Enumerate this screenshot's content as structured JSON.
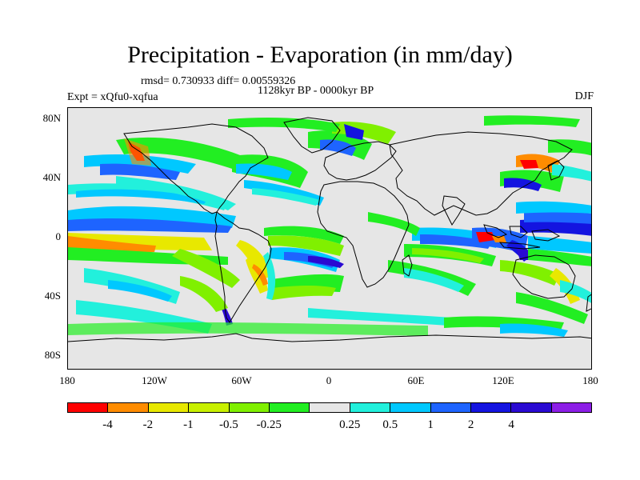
{
  "title": "Precipitation - Evaporation (in mm/day)",
  "stats": "rmsd= 0.730933 diff= 0.00559326",
  "period": "1128kyr BP - 0000kyr BP",
  "experiment": "Expt = xQfu0-xqfua",
  "season": "DJF",
  "map": {
    "ocean_color": "#e6e6e6",
    "coastline_color": "#000000",
    "lat_ticks": [
      "80N",
      "40N",
      "0",
      "40S",
      "80S"
    ],
    "lon_ticks": [
      "180",
      "120W",
      "60W",
      "0",
      "60E",
      "120E",
      "180"
    ]
  },
  "colorbar": {
    "colors": [
      "#ff0000",
      "#ff8c00",
      "#e8e800",
      "#c8f000",
      "#80f000",
      "#22ee22",
      "#e6e6e6",
      "#22f0dc",
      "#00c8ff",
      "#1e64ff",
      "#1414e0",
      "#2a0ad2",
      "#8c1ee6"
    ],
    "labels": [
      "-4",
      "-2",
      "-1",
      "-0.5",
      "-0.25",
      "0.25",
      "0.5",
      "1",
      "2",
      "4"
    ]
  }
}
